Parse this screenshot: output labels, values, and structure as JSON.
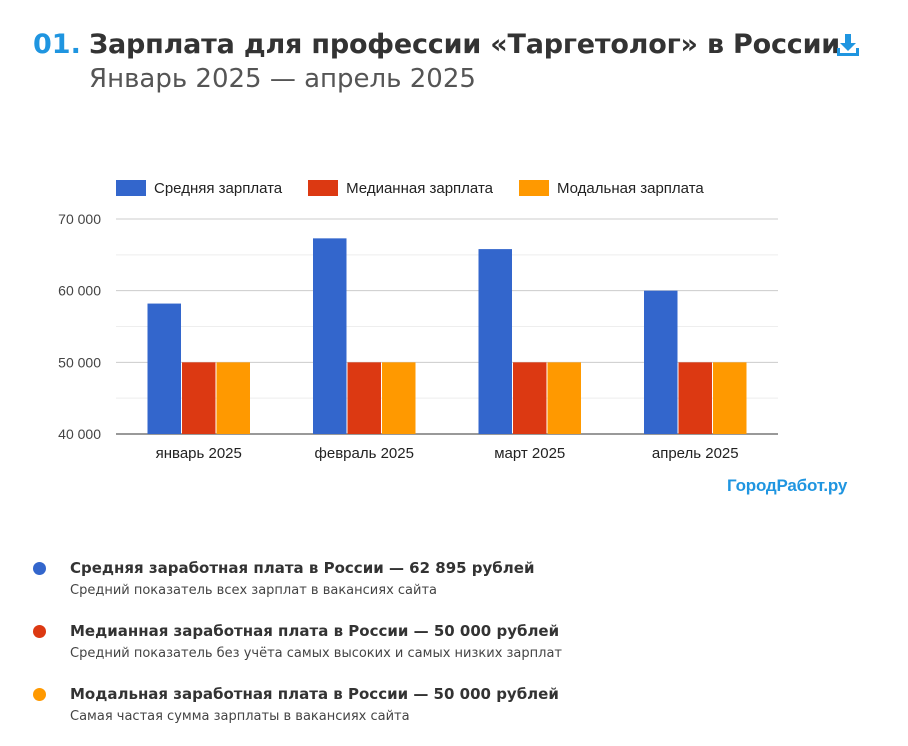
{
  "header": {
    "number": "01.",
    "title": "Зарплата для профессии «Таргетолог» в России",
    "subtitle": "Январь 2025 — апрель 2025"
  },
  "download_icon": "download-icon",
  "brand": "ГородРабот.ру",
  "chart_data": {
    "type": "bar",
    "title": "",
    "xlabel": "",
    "ylabel": "",
    "categories": [
      "январь 2025",
      "февраль 2025",
      "март 2025",
      "апрель 2025"
    ],
    "series": [
      {
        "name": "Средняя зарплата",
        "color": "#3366cc",
        "values": [
          58200,
          67300,
          65800,
          60000
        ]
      },
      {
        "name": "Медианная зарплата",
        "color": "#dc3912",
        "values": [
          50000,
          50000,
          50000,
          50000
        ]
      },
      {
        "name": "Модальная зарплата",
        "color": "#ff9900",
        "values": [
          50000,
          50000,
          50000,
          50000
        ]
      }
    ],
    "ylim": [
      40000,
      70000
    ],
    "yticks": [
      40000,
      50000,
      60000,
      70000
    ],
    "ytick_labels": [
      "40 000",
      "50 000",
      "60 000",
      "70 000"
    ],
    "grid": true,
    "legend_position": "top"
  },
  "notes": [
    {
      "color": "#3366cc",
      "title": "Средняя заработная плата в России — 62 895 рублей",
      "description": "Средний показатель всех зарплат в вакансиях сайта"
    },
    {
      "color": "#dc3912",
      "title": "Медианная заработная плата в России — 50 000 рублей",
      "description": "Средний показатель без учёта самых высоких и самых низких зарплат"
    },
    {
      "color": "#ff9900",
      "title": "Модальная заработная плата в России — 50 000 рублей",
      "description": "Самая частая сумма зарплаты в вакансиях сайта"
    }
  ]
}
